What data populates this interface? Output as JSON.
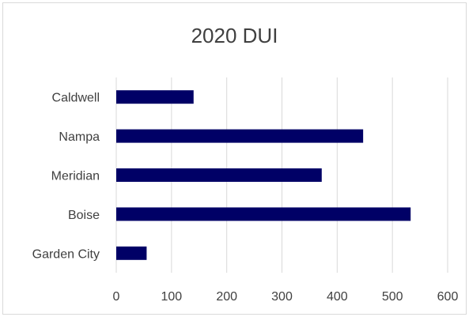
{
  "chart_data": {
    "type": "bar",
    "orientation": "horizontal",
    "title": "2020 DUI",
    "xlabel": "",
    "ylabel": "",
    "categories": [
      "Caldwell",
      "Nampa",
      "Meridian",
      "Boise",
      "Garden City"
    ],
    "values": [
      140,
      447,
      372,
      533,
      55
    ],
    "xlim": [
      0,
      600
    ],
    "ticks": [
      0,
      100,
      200,
      300,
      400,
      500,
      600
    ],
    "grid": true,
    "legend": "none",
    "bar_color": "#000066",
    "grid_color": "#d9d9d9"
  }
}
